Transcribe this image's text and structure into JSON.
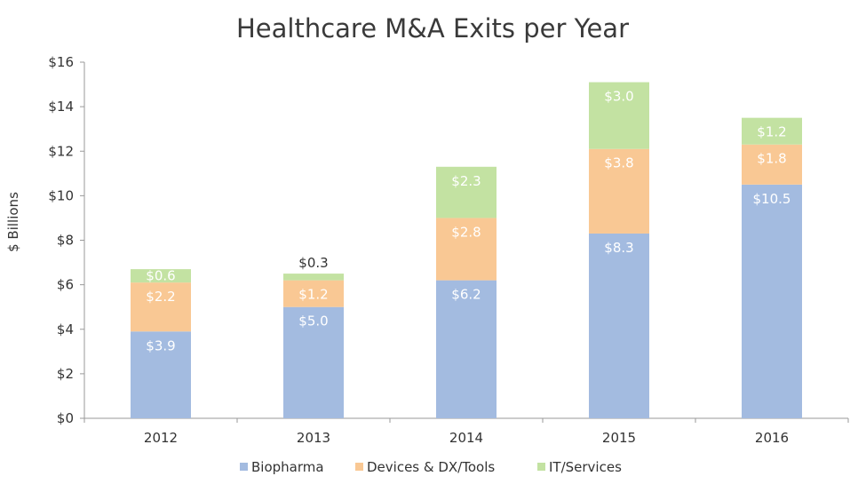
{
  "chart_data": {
    "type": "bar",
    "stacked": true,
    "title": "Healthcare M&A Exits per Year",
    "xlabel": "",
    "ylabel": "$ Billions",
    "ylim": [
      0,
      16
    ],
    "yticks": [
      0,
      2,
      4,
      6,
      8,
      10,
      12,
      14,
      16
    ],
    "ytick_labels": [
      "$0",
      "$2",
      "$4",
      "$6",
      "$8",
      "$10",
      "$12",
      "$14",
      "$16"
    ],
    "categories": [
      "2012",
      "2013",
      "2014",
      "2015",
      "2016"
    ],
    "series": [
      {
        "name": "Biopharma",
        "color": "#a3bbe0",
        "values": [
          3.9,
          5.0,
          6.2,
          8.3,
          10.5
        ],
        "labels": [
          "$3.9",
          "$5.0",
          "$6.2",
          "$8.3",
          "$10.5"
        ]
      },
      {
        "name": "Devices & DX/Tools",
        "color": "#f9c894",
        "values": [
          2.2,
          1.2,
          2.8,
          3.8,
          1.8
        ],
        "labels": [
          "$2.2",
          "$1.2",
          "$2.8",
          "$3.8",
          "$1.8"
        ]
      },
      {
        "name": "IT/Services",
        "color": "#c3e2a2",
        "values": [
          0.6,
          0.3,
          2.3,
          3.0,
          1.2
        ],
        "labels": [
          "$0.6",
          "$0.3",
          "$2.3",
          "$3.0",
          "$1.2"
        ]
      }
    ],
    "label_outside": [
      [
        false,
        false,
        false,
        false,
        false
      ],
      [
        false,
        false,
        false,
        false,
        false
      ],
      [
        false,
        true,
        false,
        false,
        false
      ]
    ],
    "legend_position": "bottom",
    "grid": false
  }
}
